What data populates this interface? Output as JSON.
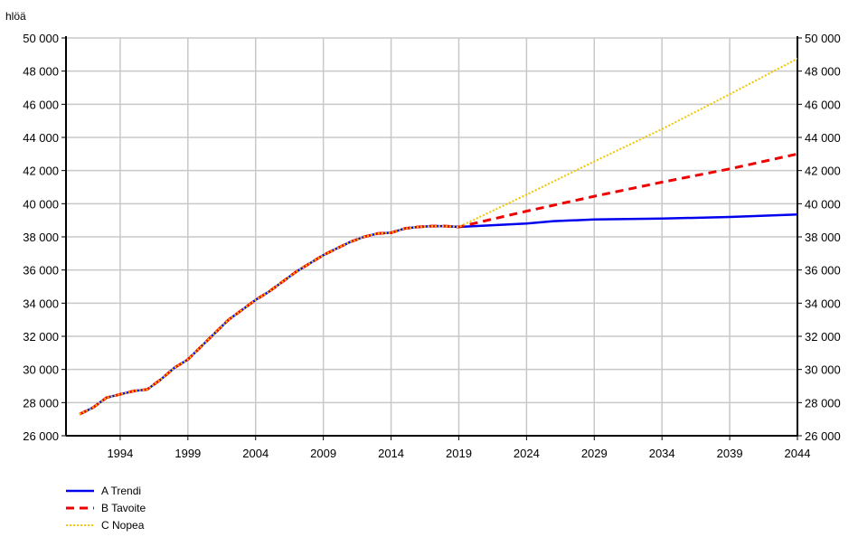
{
  "chart_data": {
    "type": "line",
    "title": "",
    "unit_label": "hlöä",
    "xlabel": "",
    "ylabel": "",
    "xlim": [
      1990,
      2044
    ],
    "ylim": [
      26000,
      50000
    ],
    "x_ticks": [
      1994,
      1999,
      2004,
      2009,
      2014,
      2019,
      2024,
      2029,
      2034,
      2039,
      2044
    ],
    "y_ticks": [
      26000,
      28000,
      30000,
      32000,
      34000,
      36000,
      38000,
      40000,
      42000,
      44000,
      46000,
      48000,
      50000
    ],
    "y_tick_labels": [
      "26 000",
      "28 000",
      "30 000",
      "32 000",
      "34 000",
      "36 000",
      "38 000",
      "40 000",
      "42 000",
      "44 000",
      "46 000",
      "48 000",
      "50 000"
    ],
    "grid": true,
    "legend_position": "bottom-left",
    "history": {
      "x": [
        1991,
        1992,
        1993,
        1994,
        1995,
        1996,
        1997,
        1998,
        1999,
        2000,
        2001,
        2002,
        2003,
        2004,
        2005,
        2006,
        2007,
        2008,
        2009,
        2010,
        2011,
        2012,
        2013,
        2014,
        2015,
        2016,
        2017,
        2018,
        2019
      ],
      "y": [
        27300,
        27700,
        28300,
        28500,
        28700,
        28800,
        29400,
        30100,
        30600,
        31400,
        32200,
        33000,
        33600,
        34200,
        34700,
        35300,
        35900,
        36400,
        36900,
        37300,
        37700,
        38000,
        38200,
        38250,
        38500,
        38600,
        38650,
        38650,
        38600
      ]
    },
    "series": [
      {
        "name": "A Trendi",
        "color": "#0000ee",
        "style": "solid",
        "x": [
          2019,
          2024,
          2026,
          2029,
          2034,
          2039,
          2044
        ],
        "y": [
          38600,
          38800,
          38950,
          39050,
          39100,
          39200,
          39350
        ]
      },
      {
        "name": "B Tavoite",
        "color": "#ee0000",
        "style": "dashed",
        "x": [
          2019,
          2024,
          2029,
          2034,
          2039,
          2044
        ],
        "y": [
          38600,
          39550,
          40450,
          41300,
          42100,
          43000
        ]
      },
      {
        "name": "C Nopea",
        "color": "#f2c500",
        "style": "dotted",
        "x": [
          2019,
          2024,
          2029,
          2034,
          2039,
          2044
        ],
        "y": [
          38600,
          40550,
          42550,
          44500,
          46600,
          48750
        ]
      }
    ]
  }
}
